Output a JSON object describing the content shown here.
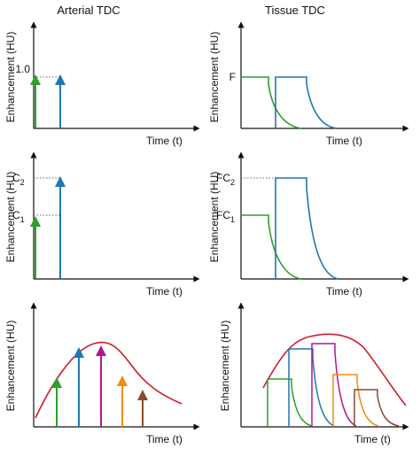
{
  "titles": {
    "left": "Arterial TDC",
    "right": "Tissue TDC"
  },
  "axes": {
    "x_label": "Time (t)",
    "y_label": "Enhancement (HU)"
  },
  "labels": {
    "p1_tick": "1.0",
    "p2_tick": "F",
    "p3_tick_top": "C",
    "p3_tick_top_sub": "2",
    "p3_tick_bottom": "C",
    "p3_tick_bottom_sub": "1",
    "p4_tick_top": "FC",
    "p4_tick_top_sub": "2",
    "p4_tick_bottom": "FC",
    "p4_tick_bottom_sub": "1"
  },
  "colors": {
    "green": "#2ca02c",
    "blue": "#1f77b4",
    "magenta": "#b0168f",
    "orange": "#ef8c12",
    "brown": "#8b4a2b",
    "red": "#d11a2a",
    "axis": "#111111",
    "dotted": "#666666"
  }
}
